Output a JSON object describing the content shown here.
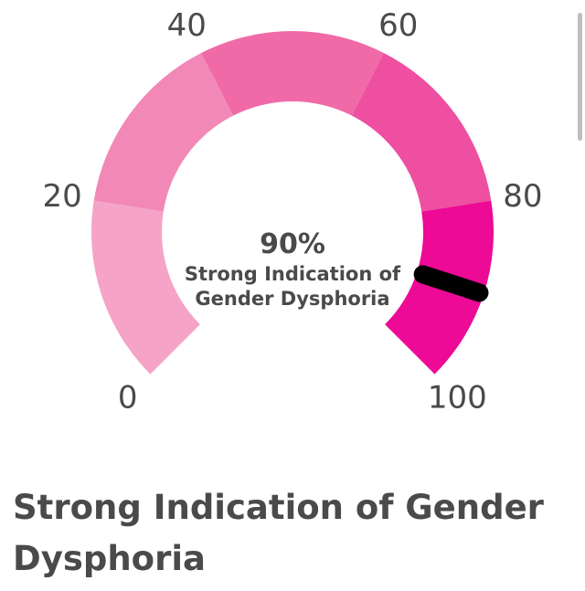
{
  "gauge": {
    "value": 90,
    "min": 0,
    "max": 100,
    "value_text": "90%",
    "description_lines": [
      "Strong Indication of",
      "Gender Dysphoria"
    ],
    "tick_labels": [
      "0",
      "20",
      "40",
      "60",
      "80",
      "100"
    ],
    "segments": [
      {
        "from": 0,
        "to": 20,
        "color": "#f5a3c7"
      },
      {
        "from": 20,
        "to": 40,
        "color": "#f288b8"
      },
      {
        "from": 40,
        "to": 60,
        "color": "#f06aa8"
      },
      {
        "from": 60,
        "to": 80,
        "color": "#ee4fa0"
      },
      {
        "from": 80,
        "to": 100,
        "color": "#ec0a96"
      }
    ],
    "needle_color": "#000000"
  },
  "result": {
    "title": "Strong Indication of Gender Dysphoria"
  }
}
